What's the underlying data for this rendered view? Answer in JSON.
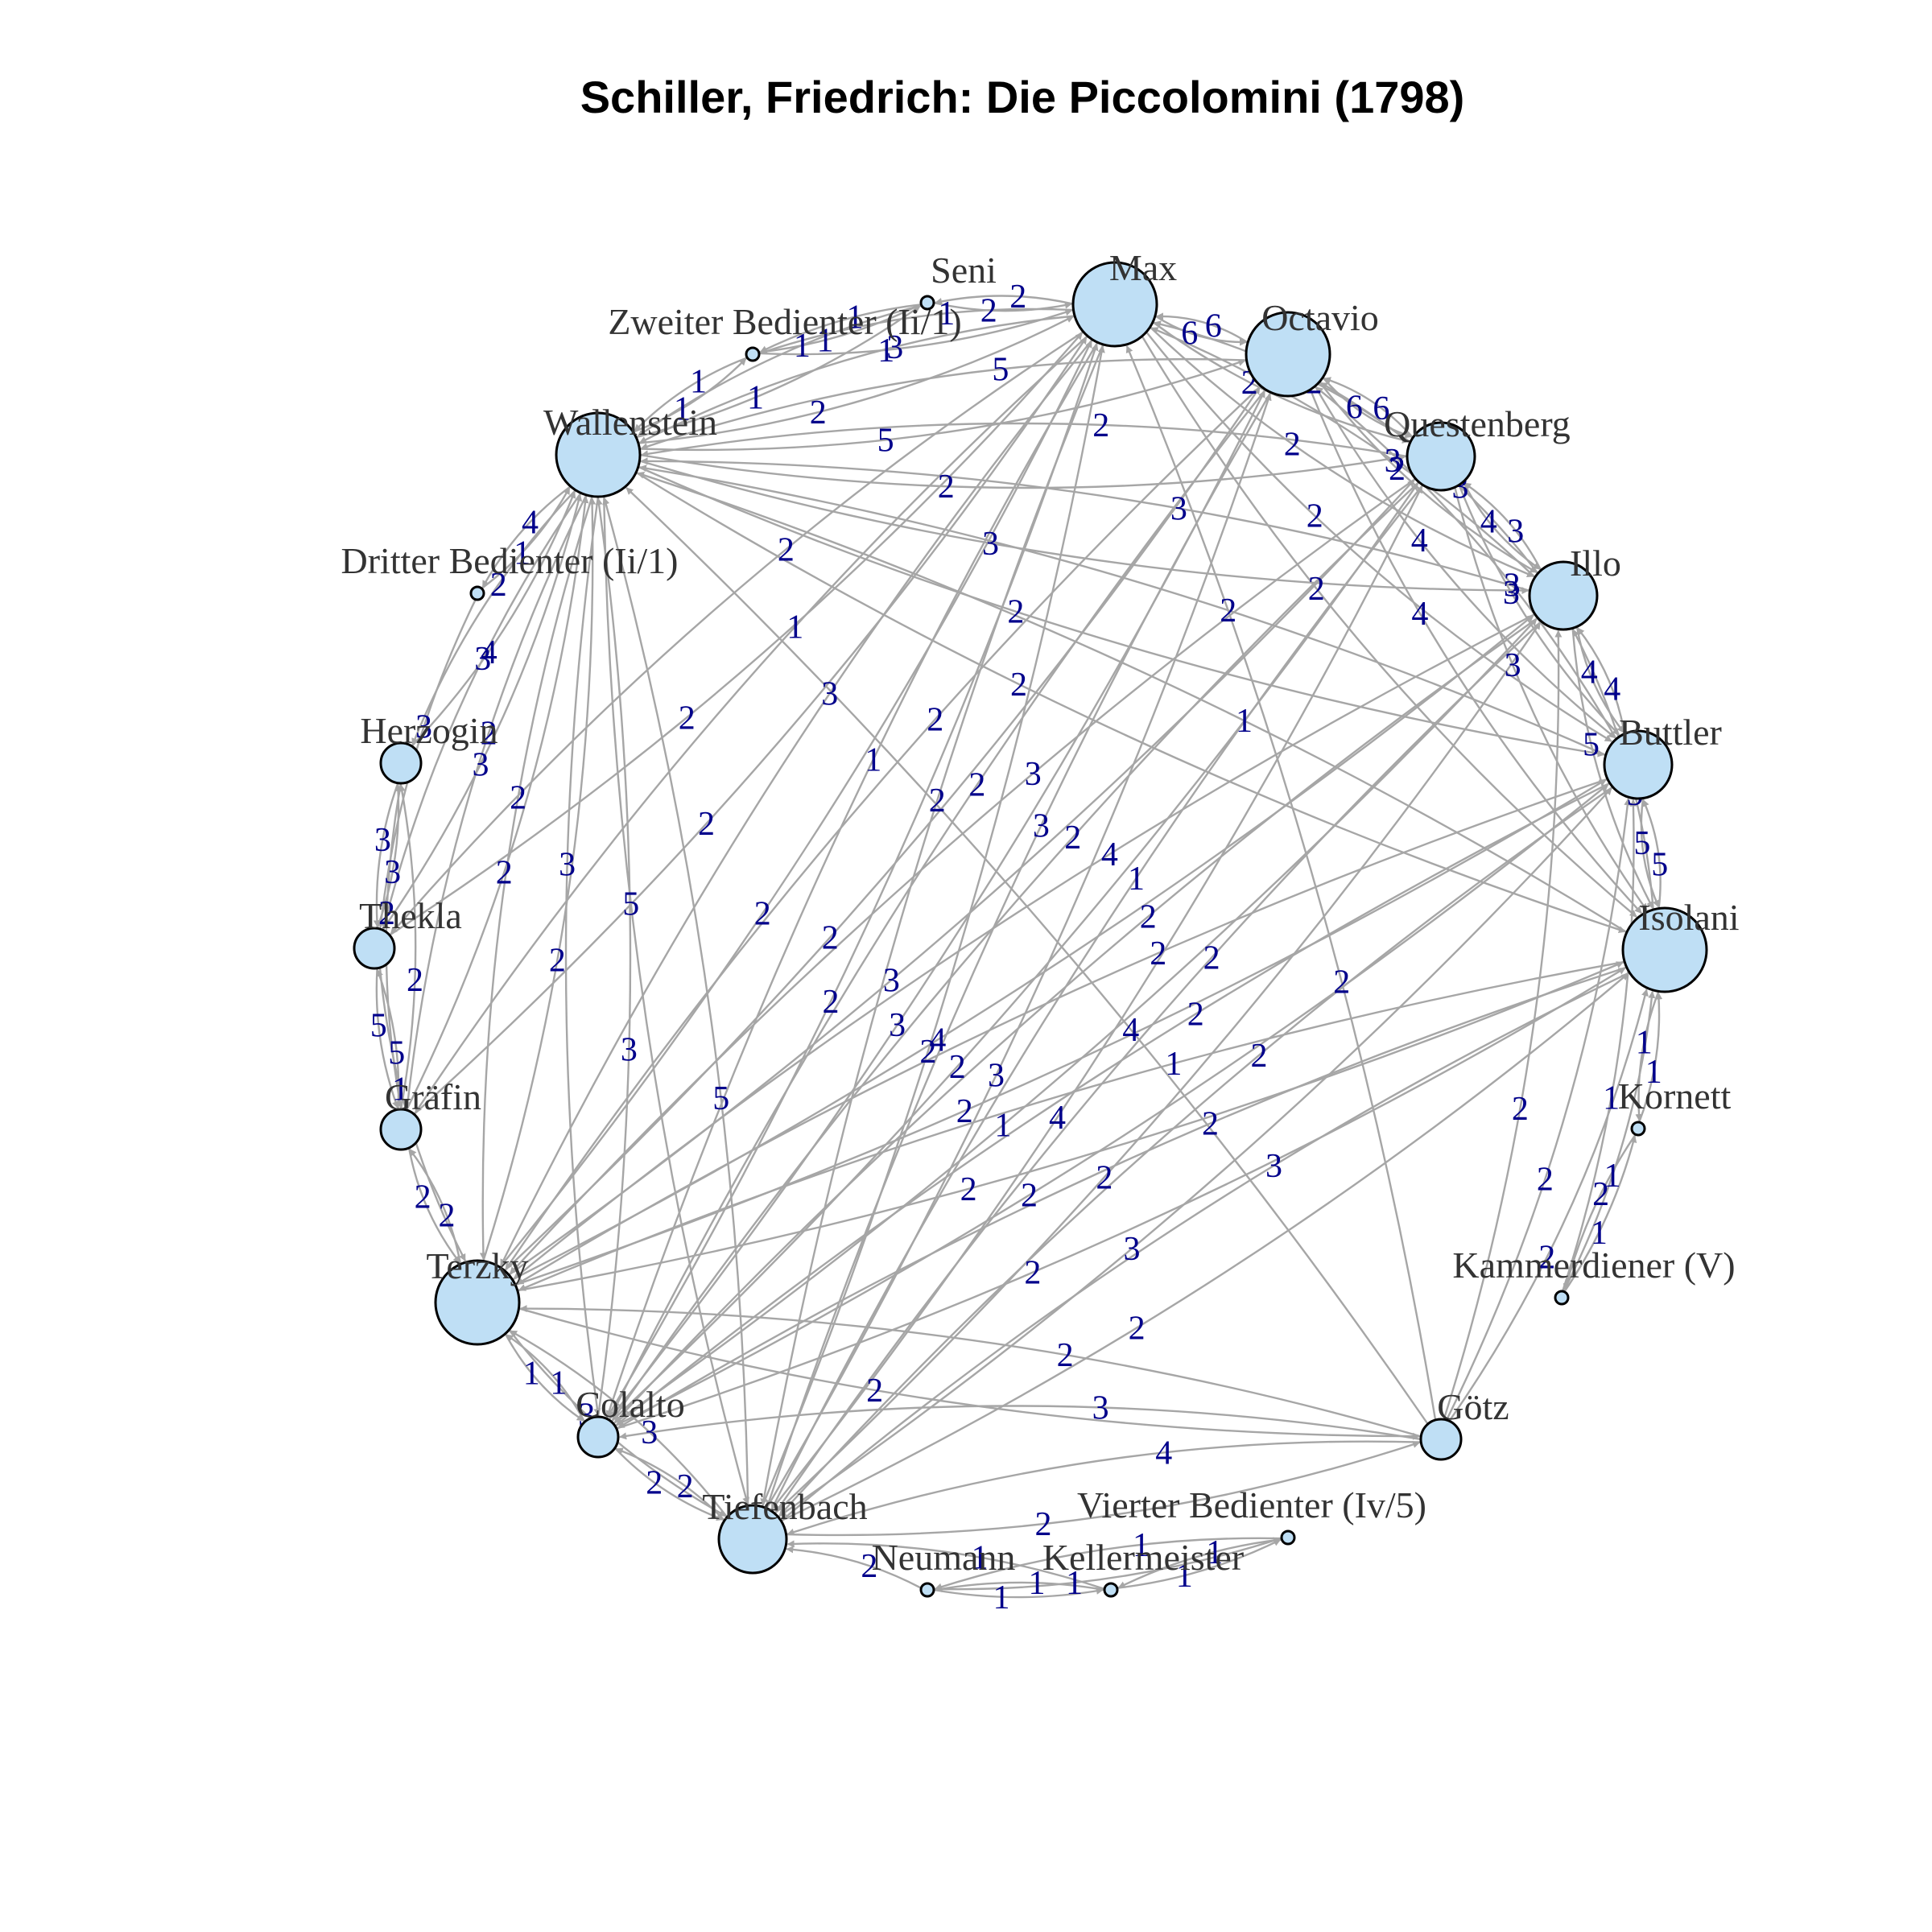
{
  "title": "Schiller, Friedrich: Die Piccolomini (1798)",
  "colors": {
    "node_fill": "#bfdff5",
    "node_stroke": "#000000",
    "edge": "#a6a6a6",
    "edge_label": "#00008b",
    "title": "#000000",
    "node_label": "#333333"
  },
  "nodes": [
    {
      "id": "max",
      "label": "Max",
      "size": 3
    },
    {
      "id": "octavio",
      "label": "Octavio",
      "size": 3
    },
    {
      "id": "questenberg",
      "label": "Questenberg",
      "size": 2
    },
    {
      "id": "illo",
      "label": "Illo",
      "size": 2
    },
    {
      "id": "buttler",
      "label": "Buttler",
      "size": 2
    },
    {
      "id": "isolani",
      "label": "Isolani",
      "size": 3
    },
    {
      "id": "kornett",
      "label": "Kornett",
      "size": 0
    },
    {
      "id": "kammerdiener",
      "label": "Kammerdiener (V)",
      "size": 0
    },
    {
      "id": "goetz",
      "label": "Götz",
      "size": 1
    },
    {
      "id": "vierter",
      "label": "Vierter Bedienter (Iv/5)",
      "size": 0
    },
    {
      "id": "kellermeister",
      "label": "Kellermeister",
      "size": 0
    },
    {
      "id": "neumann",
      "label": "Neumann",
      "size": 0
    },
    {
      "id": "tiefenbach",
      "label": "Tiefenbach",
      "size": 2
    },
    {
      "id": "colalto",
      "label": "Colalto",
      "size": 1
    },
    {
      "id": "terzky",
      "label": "Terzky",
      "size": 3
    },
    {
      "id": "graefin",
      "label": "Gräfin",
      "size": 1
    },
    {
      "id": "thekla",
      "label": "Thekla",
      "size": 1
    },
    {
      "id": "herzogin",
      "label": "Herzogin",
      "size": 1
    },
    {
      "id": "dritter",
      "label": "Dritter Bedienter (Ii/1)",
      "size": 0
    },
    {
      "id": "wallenstein",
      "label": "Wallenstein",
      "size": 3
    },
    {
      "id": "zweiter",
      "label": "Zweiter Bedienter (Ii/1)",
      "size": 0
    },
    {
      "id": "seni",
      "label": "Seni",
      "size": 0
    }
  ],
  "edges": [
    {
      "from": "max",
      "to": "octavio",
      "weight": "6"
    },
    {
      "from": "octavio",
      "to": "max",
      "weight": "6"
    },
    {
      "from": "octavio",
      "to": "questenberg",
      "weight": "6"
    },
    {
      "from": "questenberg",
      "to": "octavio",
      "weight": "6"
    },
    {
      "from": "questenberg",
      "to": "illo",
      "weight": "4"
    },
    {
      "from": "illo",
      "to": "questenberg",
      "weight": "3"
    },
    {
      "from": "illo",
      "to": "buttler",
      "weight": "4"
    },
    {
      "from": "buttler",
      "to": "illo",
      "weight": "4"
    },
    {
      "from": "buttler",
      "to": "isolani",
      "weight": "5"
    },
    {
      "from": "isolani",
      "to": "buttler",
      "weight": "5"
    },
    {
      "from": "illo",
      "to": "isolani",
      "weight": "5"
    },
    {
      "from": "isolani",
      "to": "illo",
      "weight": "5"
    },
    {
      "from": "octavio",
      "to": "illo",
      "weight": "2"
    },
    {
      "from": "illo",
      "to": "octavio",
      "weight": "3"
    },
    {
      "from": "max",
      "to": "questenberg",
      "weight": "2"
    },
    {
      "from": "questenberg",
      "to": "max",
      "weight": "2"
    },
    {
      "from": "max",
      "to": "illo",
      "weight": "2"
    },
    {
      "from": "illo",
      "to": "max",
      "weight": "3"
    },
    {
      "from": "octavio",
      "to": "buttler",
      "weight": "4"
    },
    {
      "from": "buttler",
      "to": "octavio",
      "weight": "3"
    },
    {
      "from": "max",
      "to": "buttler",
      "weight": "2"
    },
    {
      "from": "octavio",
      "to": "isolani",
      "weight": "4"
    },
    {
      "from": "max",
      "to": "isolani",
      "weight": "2"
    },
    {
      "from": "questenberg",
      "to": "isolani",
      "weight": "3"
    },
    {
      "from": "questenberg",
      "to": "buttler",
      "weight": "3"
    },
    {
      "from": "kornett",
      "to": "isolani",
      "weight": "1"
    },
    {
      "from": "isolani",
      "to": "kornett",
      "weight": "1"
    },
    {
      "from": "kammerdiener",
      "to": "isolani",
      "weight": "1"
    },
    {
      "from": "kammerdiener",
      "to": "buttler",
      "weight": "1"
    },
    {
      "from": "kammerdiener",
      "to": "kornett",
      "weight": "1"
    },
    {
      "from": "kornett",
      "to": "kammerdiener",
      "weight": "2"
    },
    {
      "from": "goetz",
      "to": "isolani",
      "weight": "2"
    },
    {
      "from": "goetz",
      "to": "buttler",
      "weight": "2"
    },
    {
      "from": "goetz",
      "to": "illo",
      "weight": "2"
    },
    {
      "from": "goetz",
      "to": "max",
      "weight": "2"
    },
    {
      "from": "goetz",
      "to": "wallenstein",
      "weight": "4"
    },
    {
      "from": "goetz",
      "to": "terzky",
      "weight": "2"
    },
    {
      "from": "goetz",
      "to": "tiefenbach",
      "weight": "4"
    },
    {
      "from": "goetz",
      "to": "colalto",
      "weight": "3"
    },
    {
      "from": "tiefenbach",
      "to": "goetz",
      "weight": "2"
    },
    {
      "from": "terzky",
      "to": "goetz",
      "weight": "2"
    },
    {
      "from": "vierter",
      "to": "kellermeister",
      "weight": "1"
    },
    {
      "from": "kellermeister",
      "to": "vierter",
      "weight": "1"
    },
    {
      "from": "vierter",
      "to": "neumann",
      "weight": "1"
    },
    {
      "from": "neumann",
      "to": "vierter",
      "weight": "1"
    },
    {
      "from": "kellermeister",
      "to": "neumann",
      "weight": "1"
    },
    {
      "from": "neumann",
      "to": "kellermeister",
      "weight": "1"
    },
    {
      "from": "neumann",
      "to": "tiefenbach",
      "weight": "2"
    },
    {
      "from": "kellermeister",
      "to": "tiefenbach",
      "weight": "1"
    },
    {
      "from": "tiefenbach",
      "to": "colalto",
      "weight": "2"
    },
    {
      "from": "colalto",
      "to": "tiefenbach",
      "weight": "2"
    },
    {
      "from": "colalto",
      "to": "terzky",
      "weight": "1"
    },
    {
      "from": "terzky",
      "to": "colalto",
      "weight": "1"
    },
    {
      "from": "tiefenbach",
      "to": "terzky",
      "weight": "3"
    },
    {
      "from": "terzky",
      "to": "tiefenbach",
      "weight": "3"
    },
    {
      "from": "graefin",
      "to": "terzky",
      "weight": "2"
    },
    {
      "from": "terzky",
      "to": "graefin",
      "weight": "2"
    },
    {
      "from": "graefin",
      "to": "thekla",
      "weight": "5"
    },
    {
      "from": "thekla",
      "to": "graefin",
      "weight": "5"
    },
    {
      "from": "thekla",
      "to": "herzogin",
      "weight": "3"
    },
    {
      "from": "herzogin",
      "to": "thekla",
      "weight": "3"
    },
    {
      "from": "graefin",
      "to": "herzogin",
      "weight": "2"
    },
    {
      "from": "herzogin",
      "to": "graefin",
      "weight": "2"
    },
    {
      "from": "herzogin",
      "to": "wallenstein",
      "weight": "4"
    },
    {
      "from": "wallenstein",
      "to": "herzogin",
      "weight": "2"
    },
    {
      "from": "thekla",
      "to": "wallenstein",
      "weight": "3"
    },
    {
      "from": "wallenstein",
      "to": "thekla",
      "weight": "3"
    },
    {
      "from": "graefin",
      "to": "wallenstein",
      "weight": "2"
    },
    {
      "from": "wallenstein",
      "to": "graefin",
      "weight": "2"
    },
    {
      "from": "thekla",
      "to": "max",
      "weight": "2"
    },
    {
      "from": "max",
      "to": "thekla",
      "weight": "2"
    },
    {
      "from": "graefin",
      "to": "max",
      "weight": "2"
    },
    {
      "from": "max",
      "to": "graefin",
      "weight": "1"
    },
    {
      "from": "thekla",
      "to": "terzky",
      "weight": "1"
    },
    {
      "from": "wallenstein",
      "to": "dritter",
      "weight": "4"
    },
    {
      "from": "dritter",
      "to": "wallenstein",
      "weight": "1"
    },
    {
      "from": "dritter",
      "to": "thekla",
      "weight": "3"
    },
    {
      "from": "wallenstein",
      "to": "zweiter",
      "weight": "1"
    },
    {
      "from": "zweiter",
      "to": "wallenstein",
      "weight": "1"
    },
    {
      "from": "zweiter",
      "to": "seni",
      "weight": "1"
    },
    {
      "from": "seni",
      "to": "zweiter",
      "weight": "1"
    },
    {
      "from": "seni",
      "to": "wallenstein",
      "weight": "1"
    },
    {
      "from": "wallenstein",
      "to": "seni",
      "weight": "1"
    },
    {
      "from": "seni",
      "to": "max",
      "weight": "2"
    },
    {
      "from": "zweiter",
      "to": "max",
      "weight": "1"
    },
    {
      "from": "wallenstein",
      "to": "max",
      "weight": "2"
    },
    {
      "from": "max",
      "to": "wallenstein",
      "weight": "3"
    },
    {
      "from": "wallenstein",
      "to": "octavio",
      "weight": "5"
    },
    {
      "from": "octavio",
      "to": "wallenstein",
      "weight": "5"
    },
    {
      "from": "wallenstein",
      "to": "questenberg",
      "weight": "2"
    },
    {
      "from": "questenberg",
      "to": "wallenstein",
      "weight": "2"
    },
    {
      "from": "wallenstein",
      "to": "illo",
      "weight": "3"
    },
    {
      "from": "illo",
      "to": "wallenstein",
      "weight": "3"
    },
    {
      "from": "wallenstein",
      "to": "buttler",
      "weight": "2"
    },
    {
      "from": "buttler",
      "to": "wallenstein",
      "weight": "2"
    },
    {
      "from": "wallenstein",
      "to": "isolani",
      "weight": "2"
    },
    {
      "from": "isolani",
      "to": "wallenstein",
      "weight": "1"
    },
    {
      "from": "wallenstein",
      "to": "terzky",
      "weight": "2"
    },
    {
      "from": "terzky",
      "to": "wallenstein",
      "weight": "2"
    },
    {
      "from": "wallenstein",
      "to": "tiefenbach",
      "weight": "5"
    },
    {
      "from": "tiefenbach",
      "to": "wallenstein",
      "weight": "5"
    },
    {
      "from": "wallenstein",
      "to": "colalto",
      "weight": "3"
    },
    {
      "from": "colalto",
      "to": "wallenstein",
      "weight": "3"
    },
    {
      "from": "terzky",
      "to": "max",
      "weight": "2"
    },
    {
      "from": "max",
      "to": "terzky",
      "weight": "3"
    },
    {
      "from": "terzky",
      "to": "octavio",
      "weight": "2"
    },
    {
      "from": "octavio",
      "to": "terzky",
      "weight": "2"
    },
    {
      "from": "terzky",
      "to": "illo",
      "weight": "4"
    },
    {
      "from": "illo",
      "to": "terzky",
      "weight": "4"
    },
    {
      "from": "terzky",
      "to": "buttler",
      "weight": "2"
    },
    {
      "from": "buttler",
      "to": "terzky",
      "weight": "2"
    },
    {
      "from": "terzky",
      "to": "isolani",
      "weight": "2"
    },
    {
      "from": "isolani",
      "to": "terzky",
      "weight": "1"
    },
    {
      "from": "terzky",
      "to": "questenberg",
      "weight": "3"
    },
    {
      "from": "questenberg",
      "to": "terzky",
      "weight": "3"
    },
    {
      "from": "tiefenbach",
      "to": "max",
      "weight": "2"
    },
    {
      "from": "max",
      "to": "tiefenbach",
      "weight": "2"
    },
    {
      "from": "tiefenbach",
      "to": "octavio",
      "weight": "3"
    },
    {
      "from": "octavio",
      "to": "tiefenbach",
      "weight": "3"
    },
    {
      "from": "tiefenbach",
      "to": "illo",
      "weight": "2"
    },
    {
      "from": "illo",
      "to": "tiefenbach",
      "weight": "2"
    },
    {
      "from": "tiefenbach",
      "to": "buttler",
      "weight": "3"
    },
    {
      "from": "buttler",
      "to": "tiefenbach",
      "weight": "2"
    },
    {
      "from": "tiefenbach",
      "to": "isolani",
      "weight": "2"
    },
    {
      "from": "isolani",
      "to": "tiefenbach",
      "weight": "3"
    },
    {
      "from": "tiefenbach",
      "to": "questenberg",
      "weight": "4"
    },
    {
      "from": "questenberg",
      "to": "tiefenbach",
      "weight": "1"
    },
    {
      "from": "colalto",
      "to": "max",
      "weight": "2"
    },
    {
      "from": "max",
      "to": "colalto",
      "weight": "1"
    },
    {
      "from": "colalto",
      "to": "octavio",
      "weight": "3"
    },
    {
      "from": "octavio",
      "to": "colalto",
      "weight": "2"
    },
    {
      "from": "colalto",
      "to": "illo",
      "weight": "1"
    },
    {
      "from": "illo",
      "to": "colalto",
      "weight": "2"
    },
    {
      "from": "colalto",
      "to": "buttler",
      "weight": "2"
    },
    {
      "from": "buttler",
      "to": "colalto",
      "weight": "2"
    },
    {
      "from": "colalto",
      "to": "isolani",
      "weight": "2"
    },
    {
      "from": "isolani",
      "to": "colalto",
      "weight": "2"
    },
    {
      "from": "colalto",
      "to": "questenberg",
      "weight": "2"
    },
    {
      "from": "questenberg",
      "to": "colalto",
      "weight": "2"
    },
    {
      "from": "max",
      "to": "seni",
      "weight": "2"
    },
    {
      "from": "max",
      "to": "zweiter",
      "weight": "1"
    }
  ]
}
